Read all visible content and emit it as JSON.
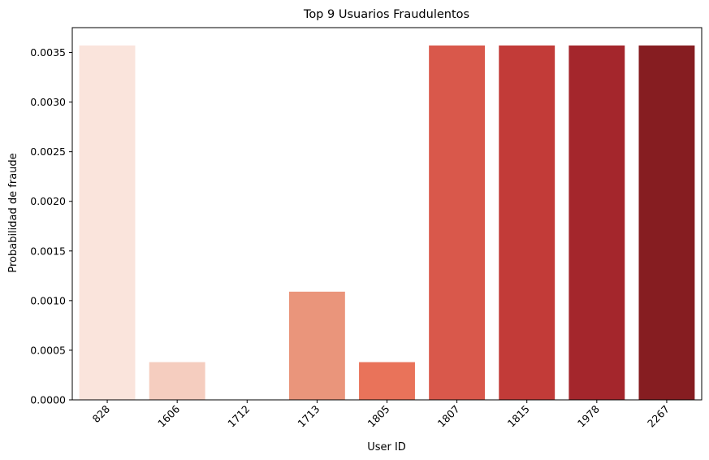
{
  "chart_data": {
    "type": "bar",
    "title": "Top 9 Usuarios Fraudulentos",
    "xlabel": "User ID",
    "ylabel": "Probabilidad de fraude",
    "categories": [
      "828",
      "1606",
      "1712",
      "1713",
      "1805",
      "1807",
      "1815",
      "1978",
      "2267"
    ],
    "values": [
      0.00357,
      0.00038,
      0.0,
      0.00109,
      0.00038,
      0.00357,
      0.00357,
      0.00357,
      0.00357
    ],
    "colors": [
      "#fae4dc",
      "#f5cdbf",
      "#f8ab95",
      "#ea957b",
      "#e9735a",
      "#d9584b",
      "#c23b38",
      "#a4262c",
      "#861d21"
    ],
    "yticks": [
      "0.0000",
      "0.0005",
      "0.0010",
      "0.0015",
      "0.0020",
      "0.0025",
      "0.0030",
      "0.0035"
    ],
    "ylim": [
      0,
      0.00375
    ],
    "grid": false,
    "legend": "none"
  }
}
